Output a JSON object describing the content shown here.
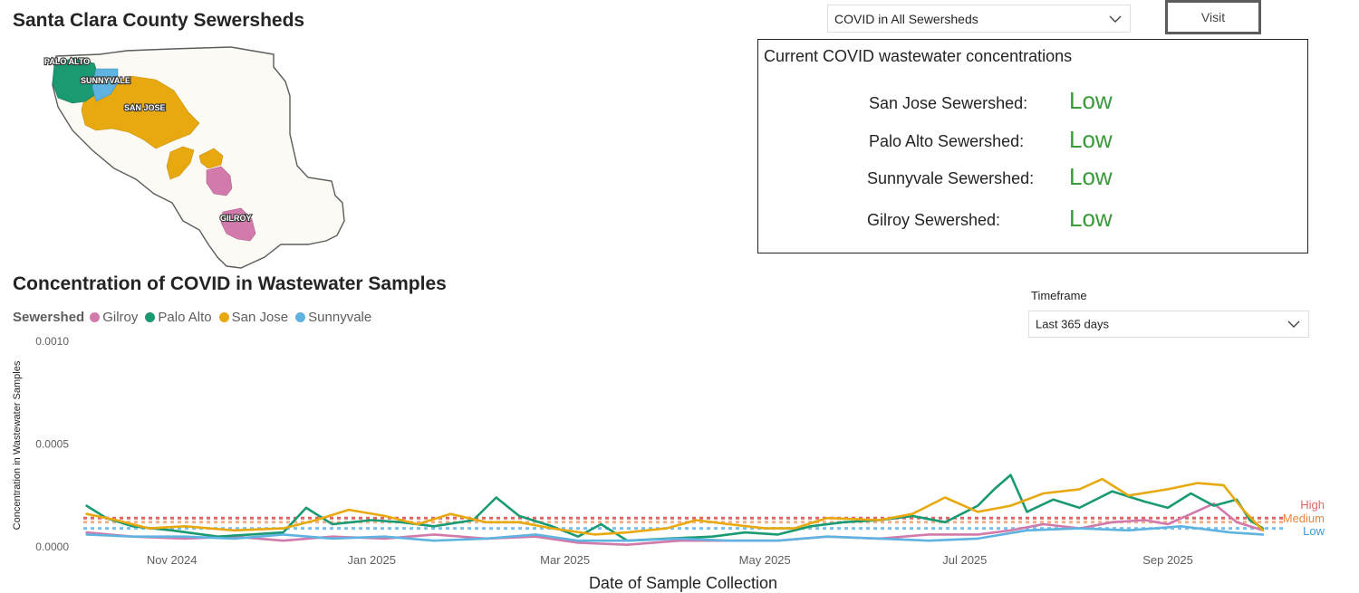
{
  "map": {
    "title": "Santa Clara County Sewersheds",
    "labels": {
      "palo_alto": "PALO ALTO",
      "sunnyvale": "SUNNYVALE",
      "san_jose": "SAN JOSE",
      "gilroy": "GILROY"
    },
    "colors": {
      "palo_alto": "#1a9a73",
      "sunnyvale": "#5fb3e0",
      "san_jose": "#e8a910",
      "gilroy": "#d27aab",
      "county": "#fcfaf4"
    }
  },
  "selector": {
    "selected": "COVID in All Sewersheds"
  },
  "visit_button": {
    "label": "Visit"
  },
  "status": {
    "heading": "Current COVID wastewater concentrations",
    "rows": [
      {
        "label": "San Jose Sewershed:",
        "value": "Low"
      },
      {
        "label": "Palo Alto Sewershed:",
        "value": "Low"
      },
      {
        "label": "Sunnyvale Sewershed:",
        "value": "Low"
      },
      {
        "label": "Gilroy Sewershed:",
        "value": "Low"
      }
    ],
    "value_color": "#3a9a3a"
  },
  "timeframe": {
    "label": "Timeframe",
    "selected": "Last 365 days"
  },
  "chart_data": {
    "type": "line",
    "title": "Concentration of COVID in Wastewater Samples",
    "xlabel": "Date of Sample Collection",
    "ylabel": "Concentration in Wastewater Samples",
    "legend_title": "Sewershed",
    "legend_position": "top-left",
    "ylim": [
      0,
      0.001
    ],
    "yticks": [
      "0.0000",
      "0.0005",
      "0.0010"
    ],
    "ytick_values": [
      0,
      0.0005,
      0.001
    ],
    "x_range": [
      "2024-10-05",
      "2025-10-05"
    ],
    "xticks": [
      {
        "label": "Nov 2024",
        "date": "2024-11-01"
      },
      {
        "label": "Jan 2025",
        "date": "2025-01-01"
      },
      {
        "label": "Mar 2025",
        "date": "2025-03-01"
      },
      {
        "label": "May 2025",
        "date": "2025-05-01"
      },
      {
        "label": "Jul 2025",
        "date": "2025-07-01"
      },
      {
        "label": "Sep 2025",
        "date": "2025-09-01"
      }
    ],
    "thresholds": [
      {
        "name": "High",
        "value": 0.00014,
        "color": "#e06666"
      },
      {
        "name": "Medium",
        "value": 0.00012,
        "color": "#f0b38a"
      },
      {
        "name": "Low",
        "value": 9e-05,
        "color": "#7cc0ea"
      }
    ],
    "threshold_labels": [
      {
        "text": "High",
        "color": "#e06666"
      },
      {
        "text": "Medium",
        "color": "#e8873a"
      },
      {
        "text": "Low",
        "color": "#3a9ad9"
      }
    ],
    "series": [
      {
        "name": "Gilroy",
        "color": "#d27aab",
        "points": [
          [
            "2024-10-06",
            7e-05
          ],
          [
            "2024-10-20",
            5e-05
          ],
          [
            "2024-11-05",
            4e-05
          ],
          [
            "2024-11-20",
            5e-05
          ],
          [
            "2024-12-05",
            3e-05
          ],
          [
            "2024-12-20",
            5e-05
          ],
          [
            "2025-01-05",
            4e-05
          ],
          [
            "2025-01-20",
            6e-05
          ],
          [
            "2025-02-05",
            4e-05
          ],
          [
            "2025-02-20",
            5e-05
          ],
          [
            "2025-03-05",
            2e-05
          ],
          [
            "2025-03-20",
            1e-05
          ],
          [
            "2025-04-05",
            3e-05
          ],
          [
            "2025-04-20",
            3e-05
          ],
          [
            "2025-05-05",
            3e-05
          ],
          [
            "2025-05-20",
            5e-05
          ],
          [
            "2025-06-05",
            4e-05
          ],
          [
            "2025-06-20",
            6e-05
          ],
          [
            "2025-07-05",
            6e-05
          ],
          [
            "2025-07-15",
            8e-05
          ],
          [
            "2025-07-25",
            0.00011
          ],
          [
            "2025-08-05",
            9e-05
          ],
          [
            "2025-08-15",
            0.00012
          ],
          [
            "2025-08-25",
            0.00013
          ],
          [
            "2025-09-01",
            0.00011
          ],
          [
            "2025-09-08",
            0.00016
          ],
          [
            "2025-09-15",
            0.00021
          ],
          [
            "2025-09-22",
            0.00012
          ],
          [
            "2025-09-30",
            8e-05
          ]
        ]
      },
      {
        "name": "Palo Alto",
        "color": "#1a9a73",
        "points": [
          [
            "2024-10-06",
            0.0002
          ],
          [
            "2024-10-12",
            0.00014
          ],
          [
            "2024-10-20",
            0.0001
          ],
          [
            "2024-11-01",
            8e-05
          ],
          [
            "2024-11-15",
            5e-05
          ],
          [
            "2024-11-25",
            6e-05
          ],
          [
            "2024-12-05",
            7e-05
          ],
          [
            "2024-12-12",
            0.00019
          ],
          [
            "2024-12-20",
            0.00011
          ],
          [
            "2025-01-01",
            0.00013
          ],
          [
            "2025-01-10",
            0.00012
          ],
          [
            "2025-01-20",
            0.0001
          ],
          [
            "2025-02-01",
            0.00013
          ],
          [
            "2025-02-08",
            0.00024
          ],
          [
            "2025-02-15",
            0.00015
          ],
          [
            "2025-02-25",
            0.0001
          ],
          [
            "2025-03-05",
            5e-05
          ],
          [
            "2025-03-12",
            0.00011
          ],
          [
            "2025-03-20",
            3e-05
          ],
          [
            "2025-04-01",
            4e-05
          ],
          [
            "2025-04-15",
            5e-05
          ],
          [
            "2025-04-25",
            7e-05
          ],
          [
            "2025-05-05",
            6e-05
          ],
          [
            "2025-05-15",
            0.0001
          ],
          [
            "2025-05-25",
            0.00012
          ],
          [
            "2025-06-05",
            0.00013
          ],
          [
            "2025-06-15",
            0.00015
          ],
          [
            "2025-06-25",
            0.00012
          ],
          [
            "2025-07-05",
            0.0002
          ],
          [
            "2025-07-10",
            0.00028
          ],
          [
            "2025-07-15",
            0.00035
          ],
          [
            "2025-07-20",
            0.00017
          ],
          [
            "2025-07-28",
            0.00023
          ],
          [
            "2025-08-05",
            0.00019
          ],
          [
            "2025-08-15",
            0.00027
          ],
          [
            "2025-08-25",
            0.00022
          ],
          [
            "2025-09-01",
            0.00019
          ],
          [
            "2025-09-08",
            0.00026
          ],
          [
            "2025-09-15",
            0.0002
          ],
          [
            "2025-09-22",
            0.00023
          ],
          [
            "2025-09-26",
            0.00013
          ],
          [
            "2025-09-30",
            9e-05
          ]
        ]
      },
      {
        "name": "San Jose",
        "color": "#e8a910",
        "points": [
          [
            "2024-10-06",
            0.00016
          ],
          [
            "2024-10-15",
            0.00013
          ],
          [
            "2024-10-25",
            9e-05
          ],
          [
            "2024-11-05",
            0.0001
          ],
          [
            "2024-11-20",
            8e-05
          ],
          [
            "2024-12-05",
            9e-05
          ],
          [
            "2024-12-15",
            0.00013
          ],
          [
            "2024-12-25",
            0.00018
          ],
          [
            "2025-01-05",
            0.00015
          ],
          [
            "2025-01-15",
            0.00011
          ],
          [
            "2025-01-25",
            0.00016
          ],
          [
            "2025-02-05",
            0.00012
          ],
          [
            "2025-02-15",
            0.00012
          ],
          [
            "2025-02-25",
            9e-05
          ],
          [
            "2025-03-10",
            6e-05
          ],
          [
            "2025-03-20",
            7e-05
          ],
          [
            "2025-04-01",
            9e-05
          ],
          [
            "2025-04-10",
            0.00013
          ],
          [
            "2025-04-20",
            0.00011
          ],
          [
            "2025-05-01",
            9e-05
          ],
          [
            "2025-05-10",
            9e-05
          ],
          [
            "2025-05-20",
            0.00014
          ],
          [
            "2025-06-05",
            0.00013
          ],
          [
            "2025-06-15",
            0.00016
          ],
          [
            "2025-06-25",
            0.00024
          ],
          [
            "2025-07-05",
            0.00017
          ],
          [
            "2025-07-15",
            0.0002
          ],
          [
            "2025-07-25",
            0.00026
          ],
          [
            "2025-08-05",
            0.00028
          ],
          [
            "2025-08-12",
            0.00033
          ],
          [
            "2025-08-20",
            0.00025
          ],
          [
            "2025-09-01",
            0.00028
          ],
          [
            "2025-09-10",
            0.00031
          ],
          [
            "2025-09-18",
            0.0003
          ],
          [
            "2025-09-24",
            0.00018
          ],
          [
            "2025-09-30",
            8e-05
          ]
        ]
      },
      {
        "name": "Sunnyvale",
        "color": "#5fb3e0",
        "points": [
          [
            "2024-10-06",
            6e-05
          ],
          [
            "2024-10-20",
            5e-05
          ],
          [
            "2024-11-05",
            5e-05
          ],
          [
            "2024-11-20",
            4e-05
          ],
          [
            "2024-12-05",
            6e-05
          ],
          [
            "2024-12-20",
            4e-05
          ],
          [
            "2025-01-05",
            5e-05
          ],
          [
            "2025-01-20",
            3e-05
          ],
          [
            "2025-02-05",
            4e-05
          ],
          [
            "2025-02-20",
            6e-05
          ],
          [
            "2025-03-05",
            3e-05
          ],
          [
            "2025-03-20",
            3e-05
          ],
          [
            "2025-04-05",
            4e-05
          ],
          [
            "2025-04-20",
            3e-05
          ],
          [
            "2025-05-05",
            3e-05
          ],
          [
            "2025-05-20",
            5e-05
          ],
          [
            "2025-06-05",
            4e-05
          ],
          [
            "2025-06-20",
            3e-05
          ],
          [
            "2025-07-05",
            4e-05
          ],
          [
            "2025-07-20",
            8e-05
          ],
          [
            "2025-08-05",
            9e-05
          ],
          [
            "2025-08-20",
            8e-05
          ],
          [
            "2025-09-05",
            0.0001
          ],
          [
            "2025-09-20",
            7e-05
          ],
          [
            "2025-09-30",
            6e-05
          ]
        ]
      }
    ]
  }
}
